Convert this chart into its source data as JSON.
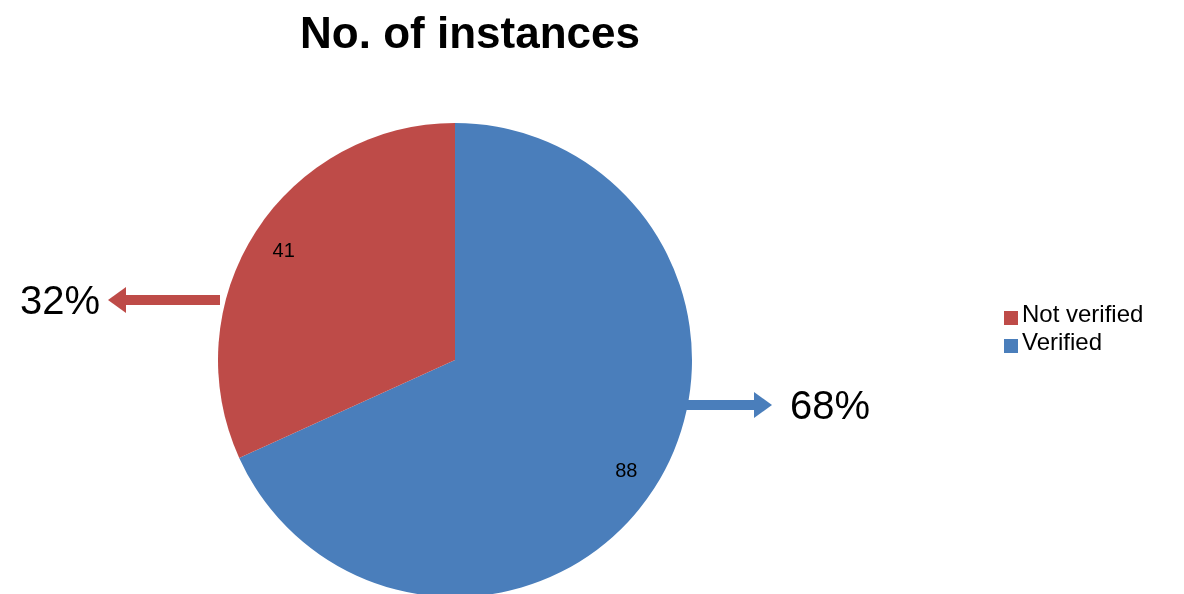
{
  "chart_data": {
    "type": "pie",
    "title": "No. of instances",
    "categories": [
      "Verified",
      "Not verified"
    ],
    "values": [
      88,
      41
    ],
    "colors": [
      "#4a7ebb",
      "#be4b48"
    ],
    "data_labels": true,
    "legend": "right",
    "annotations": [
      "68%",
      "32%"
    ]
  }
}
